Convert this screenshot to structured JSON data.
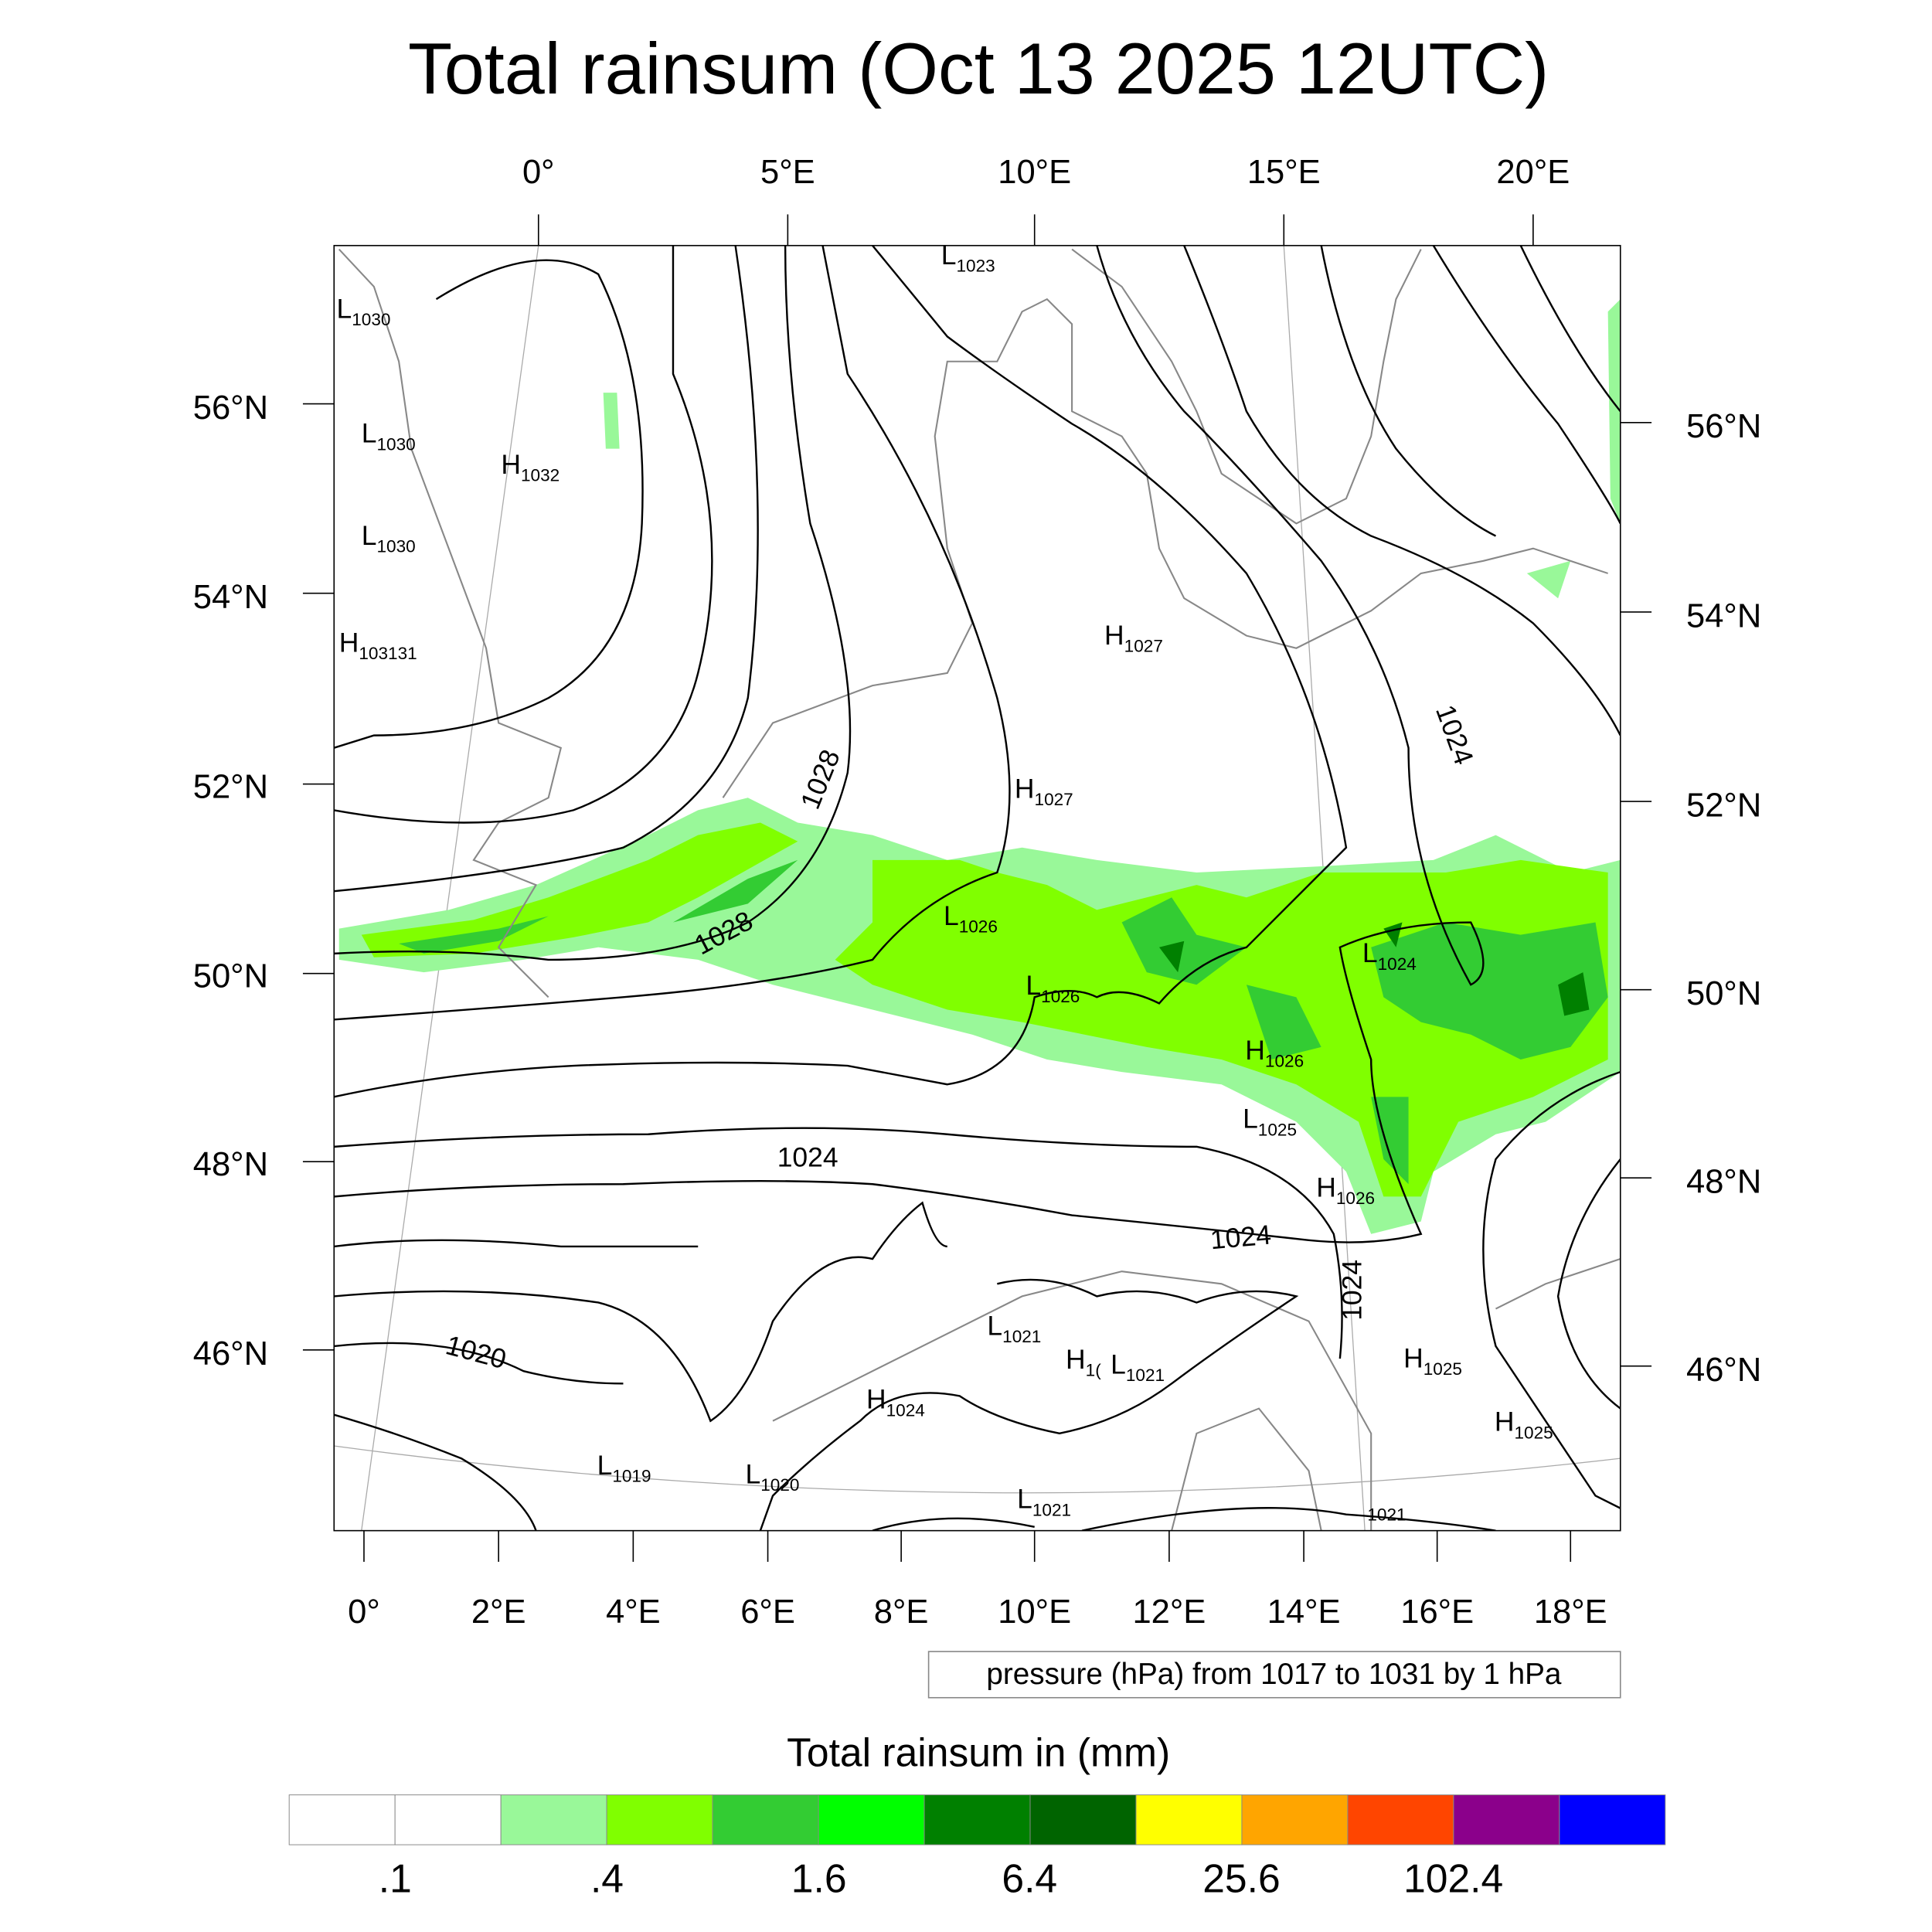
{
  "title": "Total rainsum (Oct 13 2025 12UTC)",
  "axes": {
    "top_lon": [
      "0°",
      "5°E",
      "10°E",
      "15°E",
      "20°E"
    ],
    "left_lat": [
      "56°N",
      "54°N",
      "52°N",
      "50°N",
      "48°N",
      "46°N"
    ],
    "right_lat": [
      "56°N",
      "54°N",
      "52°N",
      "50°N",
      "48°N",
      "46°N"
    ],
    "bottom_lon": [
      "0°",
      "2°E",
      "4°E",
      "6°E",
      "8°E",
      "10°E",
      "12°E",
      "14°E",
      "16°E",
      "18°E"
    ]
  },
  "pressure_centers": [
    {
      "type": "L",
      "value": "1023"
    },
    {
      "type": "L",
      "value": "1030"
    },
    {
      "type": "L",
      "value": "1030"
    },
    {
      "type": "H",
      "value": "1032"
    },
    {
      "type": "L",
      "value": "1030"
    },
    {
      "type": "H",
      "value": "1031"
    },
    {
      "type": "H",
      "value": "1027"
    },
    {
      "type": "H",
      "value": "1027"
    },
    {
      "type": "L",
      "value": "1026"
    },
    {
      "type": "L",
      "value": "1026"
    },
    {
      "type": "L",
      "value": "1024"
    },
    {
      "type": "H",
      "value": "1026"
    },
    {
      "type": "L",
      "value": "1025"
    },
    {
      "type": "H",
      "value": "1026"
    },
    {
      "type": "L",
      "value": "1021"
    },
    {
      "type": "H",
      "value": "1("
    },
    {
      "type": "L",
      "value": "1021"
    },
    {
      "type": "H",
      "value": "1024"
    },
    {
      "type": "H",
      "value": "1025"
    },
    {
      "type": "H",
      "value": "1025"
    },
    {
      "type": "L",
      "value": "1019"
    },
    {
      "type": "L",
      "value": "1020"
    },
    {
      "type": "L",
      "value": "1021"
    }
  ],
  "extra_subscripts": [
    "31",
    "1021"
  ],
  "contour_labels": [
    "1028",
    "1028",
    "1024",
    "1024",
    "1024",
    "1024",
    "1020"
  ],
  "contour_info": "pressure (hPa) from 1017 to 1031 by 1 hPa",
  "colorbar": {
    "title": "Total rainsum in (mm)",
    "colors": [
      "#ffffff",
      "#ffffff",
      "#99f899",
      "#80ff00",
      "#33cc33",
      "#00ff00",
      "#008000",
      "#006400",
      "#ffff00",
      "#ffa500",
      "#ff4500",
      "#8b008b",
      "#0000ff"
    ],
    "labels": [
      ".1",
      ".4",
      "1.6",
      "6.4",
      "25.6",
      "102.4"
    ]
  }
}
